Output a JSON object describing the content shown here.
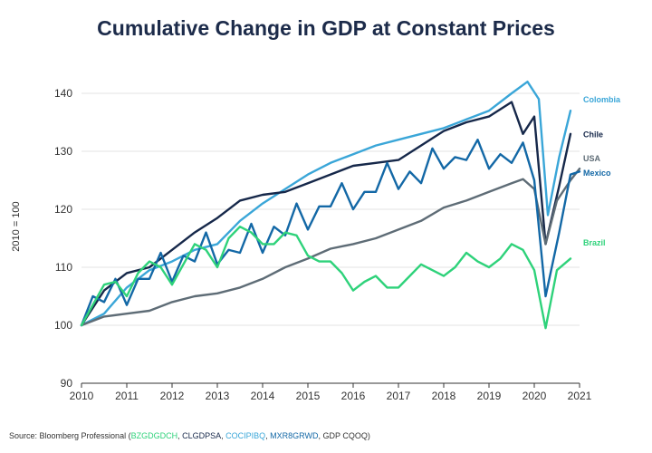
{
  "chart_data": {
    "type": "line",
    "title": "Cumulative Change in GDP at Constant Prices",
    "xlabel": "",
    "ylabel": "2010 = 100",
    "xlim": [
      2010,
      2021
    ],
    "ylim": [
      90,
      140
    ],
    "xticks": [
      "2010",
      "2011",
      "2012",
      "2013",
      "2014",
      "2015",
      "2016",
      "2017",
      "2018",
      "2019",
      "2020",
      "2021"
    ],
    "yticks": [
      "90",
      "100",
      "110",
      "120",
      "130",
      "140"
    ],
    "grid": true,
    "series": [
      {
        "name": "Colombia",
        "color": "#3aa6d8",
        "points": [
          [
            2010,
            100
          ],
          [
            2010.5,
            102
          ],
          [
            2011,
            106.5
          ],
          [
            2011.5,
            109.5
          ],
          [
            2012,
            111
          ],
          [
            2012.5,
            113
          ],
          [
            2013,
            114
          ],
          [
            2013.5,
            118
          ],
          [
            2014,
            121
          ],
          [
            2014.5,
            123.5
          ],
          [
            2015,
            126
          ],
          [
            2015.5,
            128
          ],
          [
            2016,
            129.5
          ],
          [
            2016.5,
            131
          ],
          [
            2017,
            132
          ],
          [
            2017.5,
            133
          ],
          [
            2018,
            134
          ],
          [
            2018.5,
            135.5
          ],
          [
            2019,
            137
          ],
          [
            2019.5,
            140
          ],
          [
            2019.85,
            142
          ],
          [
            2020.1,
            139
          ],
          [
            2020.3,
            119
          ],
          [
            2020.55,
            129
          ],
          [
            2020.8,
            137
          ]
        ]
      },
      {
        "name": "Chile",
        "color": "#16284a",
        "points": [
          [
            2010,
            100
          ],
          [
            2010.5,
            106
          ],
          [
            2011,
            109
          ],
          [
            2011.5,
            110
          ],
          [
            2012,
            113
          ],
          [
            2012.5,
            116
          ],
          [
            2013,
            118.5
          ],
          [
            2013.5,
            121.5
          ],
          [
            2014,
            122.5
          ],
          [
            2014.5,
            123
          ],
          [
            2015,
            124.5
          ],
          [
            2015.5,
            126
          ],
          [
            2016,
            127.5
          ],
          [
            2016.5,
            128
          ],
          [
            2017,
            128.5
          ],
          [
            2017.5,
            131
          ],
          [
            2018,
            133.5
          ],
          [
            2018.5,
            135
          ],
          [
            2019,
            136
          ],
          [
            2019.5,
            138.5
          ],
          [
            2019.75,
            133
          ],
          [
            2020,
            136
          ],
          [
            2020.25,
            114
          ],
          [
            2020.55,
            124
          ],
          [
            2020.8,
            133
          ]
        ]
      },
      {
        "name": "USA",
        "color": "#5e6c76",
        "points": [
          [
            2010,
            100
          ],
          [
            2010.5,
            101.5
          ],
          [
            2011,
            102
          ],
          [
            2011.5,
            102.5
          ],
          [
            2012,
            104
          ],
          [
            2012.5,
            105
          ],
          [
            2013,
            105.5
          ],
          [
            2013.5,
            106.5
          ],
          [
            2014,
            108
          ],
          [
            2014.5,
            110
          ],
          [
            2015,
            111.5
          ],
          [
            2015.5,
            113.2
          ],
          [
            2016,
            114
          ],
          [
            2016.5,
            115
          ],
          [
            2017,
            116.5
          ],
          [
            2017.5,
            118
          ],
          [
            2018,
            120.3
          ],
          [
            2018.5,
            121.5
          ],
          [
            2019,
            123
          ],
          [
            2019.5,
            124.5
          ],
          [
            2019.75,
            125.2
          ],
          [
            2020,
            123.5
          ],
          [
            2020.25,
            114
          ],
          [
            2020.5,
            121.5
          ],
          [
            2020.8,
            125
          ],
          [
            2021,
            127
          ]
        ]
      },
      {
        "name": "Mexico",
        "color": "#1368a6",
        "points": [
          [
            2010,
            100
          ],
          [
            2010.25,
            105
          ],
          [
            2010.5,
            104
          ],
          [
            2010.75,
            108
          ],
          [
            2011,
            103.5
          ],
          [
            2011.25,
            108
          ],
          [
            2011.5,
            108
          ],
          [
            2011.75,
            112.5
          ],
          [
            2012,
            107.5
          ],
          [
            2012.25,
            112
          ],
          [
            2012.5,
            111
          ],
          [
            2012.75,
            116
          ],
          [
            2013,
            110.5
          ],
          [
            2013.25,
            113
          ],
          [
            2013.5,
            112.5
          ],
          [
            2013.75,
            117.5
          ],
          [
            2014,
            112.5
          ],
          [
            2014.25,
            117
          ],
          [
            2014.5,
            115.5
          ],
          [
            2014.75,
            121
          ],
          [
            2015,
            116.5
          ],
          [
            2015.25,
            120.5
          ],
          [
            2015.5,
            120.5
          ],
          [
            2015.75,
            124.5
          ],
          [
            2016,
            120
          ],
          [
            2016.25,
            123
          ],
          [
            2016.5,
            123
          ],
          [
            2016.75,
            128
          ],
          [
            2017,
            123.5
          ],
          [
            2017.25,
            126.5
          ],
          [
            2017.5,
            124.5
          ],
          [
            2017.75,
            130.5
          ],
          [
            2018,
            127
          ],
          [
            2018.25,
            129
          ],
          [
            2018.5,
            128.5
          ],
          [
            2018.75,
            132
          ],
          [
            2019,
            127
          ],
          [
            2019.25,
            129.5
          ],
          [
            2019.5,
            128
          ],
          [
            2019.75,
            131.5
          ],
          [
            2020,
            125
          ],
          [
            2020.25,
            105
          ],
          [
            2020.55,
            116
          ],
          [
            2020.8,
            126
          ],
          [
            2021,
            126.5
          ]
        ]
      },
      {
        "name": "Brazil",
        "color": "#2ed27a",
        "points": [
          [
            2010,
            100
          ],
          [
            2010.25,
            103.5
          ],
          [
            2010.5,
            107
          ],
          [
            2010.75,
            107.5
          ],
          [
            2011,
            105
          ],
          [
            2011.25,
            109
          ],
          [
            2011.5,
            111
          ],
          [
            2011.75,
            110
          ],
          [
            2012,
            107
          ],
          [
            2012.25,
            110.5
          ],
          [
            2012.5,
            114
          ],
          [
            2012.75,
            113
          ],
          [
            2013,
            110
          ],
          [
            2013.25,
            115
          ],
          [
            2013.5,
            117
          ],
          [
            2013.75,
            116
          ],
          [
            2014,
            114
          ],
          [
            2014.25,
            114
          ],
          [
            2014.5,
            116
          ],
          [
            2014.75,
            115.5
          ],
          [
            2015,
            112
          ],
          [
            2015.25,
            111
          ],
          [
            2015.5,
            111
          ],
          [
            2015.75,
            109
          ],
          [
            2016,
            106
          ],
          [
            2016.25,
            107.5
          ],
          [
            2016.5,
            108.5
          ],
          [
            2016.75,
            106.5
          ],
          [
            2017,
            106.5
          ],
          [
            2017.25,
            108.5
          ],
          [
            2017.5,
            110.5
          ],
          [
            2017.75,
            109.5
          ],
          [
            2018,
            108.5
          ],
          [
            2018.25,
            110
          ],
          [
            2018.5,
            112.5
          ],
          [
            2018.75,
            111
          ],
          [
            2019,
            110
          ],
          [
            2019.25,
            111.5
          ],
          [
            2019.5,
            114
          ],
          [
            2019.75,
            113
          ],
          [
            2020,
            109.5
          ],
          [
            2020.25,
            99.5
          ],
          [
            2020.5,
            109.5
          ],
          [
            2020.8,
            111.5
          ]
        ]
      }
    ],
    "legend": [
      {
        "name": "Colombia",
        "color": "#3aa6d8",
        "at_y": 139
      },
      {
        "name": "Chile",
        "color": "#16284a",
        "at_y": 133
      },
      {
        "name": "USA",
        "color": "#5e6c76",
        "at_y": 128.8
      },
      {
        "name": "Mexico",
        "color": "#1368a6",
        "at_y": 126.3
      },
      {
        "name": "Brazil",
        "color": "#2ed27a",
        "at_y": 114.3
      }
    ]
  },
  "source": {
    "prefix": "Source: Bloomberg Professional (",
    "codes": [
      {
        "text": "BZGDGDCH",
        "color": "#2ed27a"
      },
      {
        "text": ", ",
        "color": "#333333"
      },
      {
        "text": "CLGDPSA",
        "color": "#16284a"
      },
      {
        "text": ", ",
        "color": "#333333"
      },
      {
        "text": "COCIPIBQ",
        "color": "#3aa6d8"
      },
      {
        "text": ", ",
        "color": "#333333"
      },
      {
        "text": "MXR8GRWD",
        "color": "#1368a6"
      },
      {
        "text": ", GDP CQOQ)",
        "color": "#333333"
      }
    ]
  }
}
